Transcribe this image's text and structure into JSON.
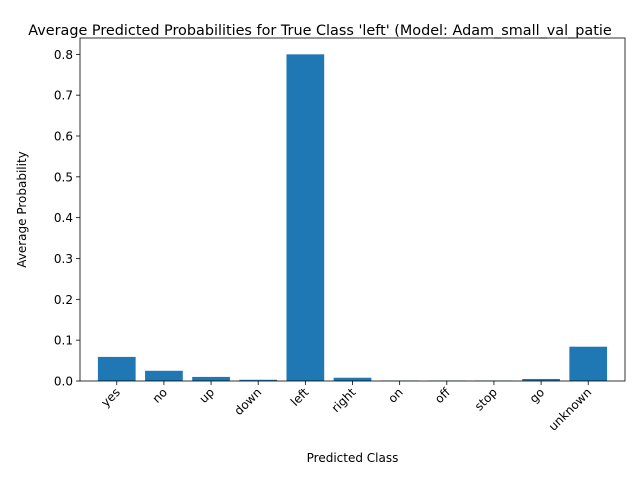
{
  "chart_data": {
    "type": "bar",
    "title": "Average Predicted Probabilities for True Class 'left' (Model: Adam_small_val_patie",
    "xlabel": "Predicted Class",
    "ylabel": "Average Probability",
    "categories": [
      "yes",
      "no",
      "up",
      "down",
      "left",
      "right",
      "on",
      "off",
      "stop",
      "go",
      "unknown"
    ],
    "values": [
      0.059,
      0.025,
      0.01,
      0.003,
      0.8,
      0.008,
      0.001,
      0.001,
      0.001,
      0.005,
      0.084
    ],
    "ylim": [
      0,
      0.84
    ],
    "yticks": [
      0.0,
      0.1,
      0.2,
      0.3,
      0.4,
      0.5,
      0.6,
      0.7,
      0.8
    ],
    "ytick_labels": [
      "0.0",
      "0.1",
      "0.2",
      "0.3",
      "0.4",
      "0.5",
      "0.6",
      "0.7",
      "0.8"
    ],
    "bar_color": "#1f77b4",
    "grid": false,
    "legend": "none"
  }
}
